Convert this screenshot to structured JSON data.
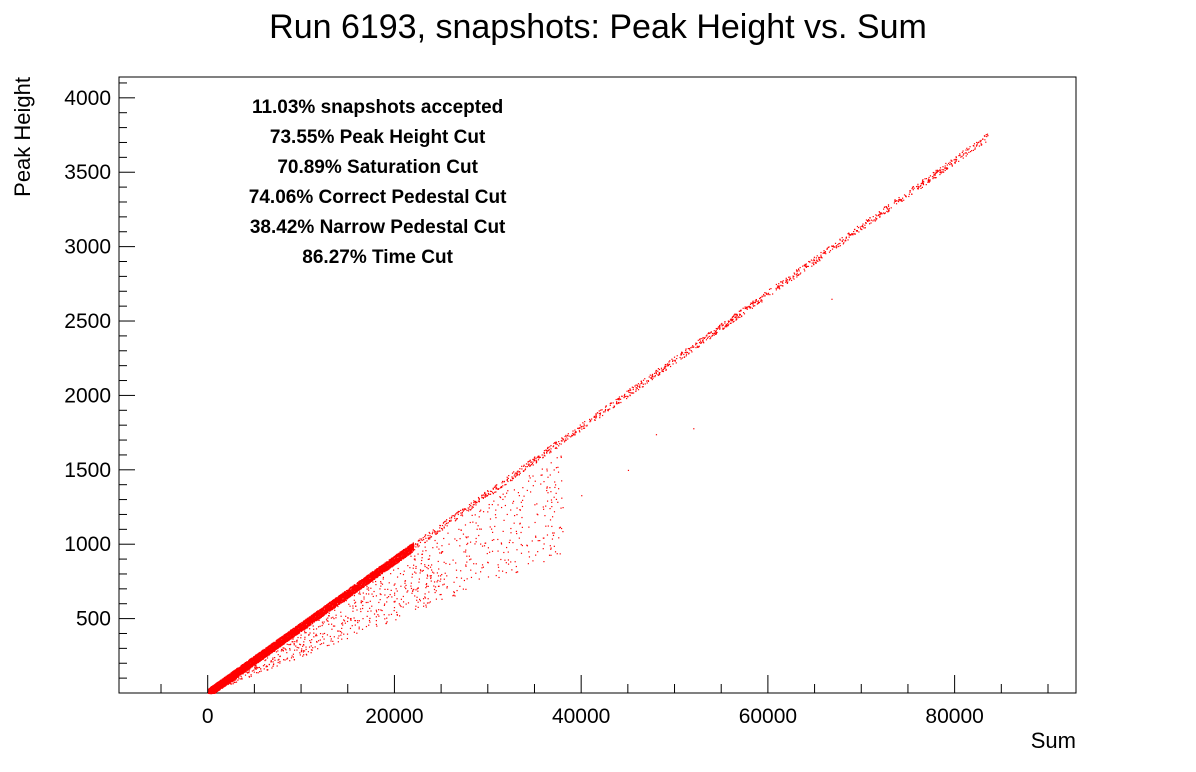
{
  "chart_data": {
    "type": "scatter",
    "title": "Run 6193, snapshots: Peak Height vs. Sum",
    "xlabel": "Sum",
    "ylabel": "Peak Height",
    "xlim": [
      -9500,
      93000
    ],
    "ylim": [
      0,
      4140
    ],
    "x_ticks": [
      0,
      20000,
      40000,
      60000,
      80000
    ],
    "y_ticks": [
      500,
      1000,
      1500,
      2000,
      2500,
      3000,
      3500,
      4000
    ],
    "x_tick_labels": [
      "0",
      "20000",
      "40000",
      "60000",
      "80000"
    ],
    "y_tick_labels": [
      "500",
      "1000",
      "1500",
      "2000",
      "2500",
      "3000",
      "3500",
      "4000"
    ],
    "grid": false,
    "marker_color": "#ff0000",
    "annotations": [
      "11.03% snapshots accepted",
      "73.55% Peak Height Cut",
      "70.89% Saturation Cut",
      "74.06% Correct Pedestal Cut",
      "38.42% Narrow Pedestal Cut",
      "86.27% Time Cut"
    ],
    "series": [
      {
        "trend": {
          "slope": 0.0448,
          "x_range": [
            0,
            83500
          ],
          "y_range": [
            0,
            3750
          ]
        },
        "dense_region": {
          "x_range": [
            0,
            22000
          ],
          "y_range": [
            0,
            1000
          ]
        },
        "points": [
          [
            500,
            22
          ],
          [
            1000,
            45
          ],
          [
            2000,
            90
          ],
          [
            3000,
            135
          ],
          [
            4000,
            180
          ],
          [
            5000,
            224
          ],
          [
            6000,
            270
          ],
          [
            7000,
            314
          ],
          [
            8000,
            360
          ],
          [
            9000,
            404
          ],
          [
            10000,
            450
          ],
          [
            11000,
            494
          ],
          [
            12000,
            540
          ],
          [
            13000,
            584
          ],
          [
            14000,
            628
          ],
          [
            15000,
            673
          ],
          [
            16000,
            718
          ],
          [
            17000,
            763
          ],
          [
            18000,
            808
          ],
          [
            19000,
            853
          ],
          [
            20000,
            898
          ],
          [
            21000,
            943
          ],
          [
            22000,
            988
          ],
          [
            24000,
            1075
          ],
          [
            26000,
            1165
          ],
          [
            28000,
            1255
          ],
          [
            30000,
            1345
          ],
          [
            32000,
            1435
          ],
          [
            34000,
            1525
          ],
          [
            36000,
            1615
          ],
          [
            38000,
            1705
          ],
          [
            40000,
            1795
          ],
          [
            42000,
            1885
          ],
          [
            44000,
            1975
          ],
          [
            46000,
            2065
          ],
          [
            48000,
            2150
          ],
          [
            50000,
            2240
          ],
          [
            52000,
            2330
          ],
          [
            54000,
            2420
          ],
          [
            56000,
            2510
          ],
          [
            58000,
            2600
          ],
          [
            60000,
            2690
          ],
          [
            62000,
            2780
          ],
          [
            64000,
            2870
          ],
          [
            66000,
            2960
          ],
          [
            68000,
            3050
          ],
          [
            70000,
            3140
          ],
          [
            72000,
            3230
          ],
          [
            74000,
            3320
          ],
          [
            76000,
            3410
          ],
          [
            78000,
            3500
          ],
          [
            80000,
            3590
          ],
          [
            82000,
            3680
          ],
          [
            83500,
            3750
          ],
          [
            48000,
            1740
          ],
          [
            52000,
            1780
          ],
          [
            45000,
            1500
          ],
          [
            40000,
            1330
          ],
          [
            38000,
            1250
          ],
          [
            35000,
            1150
          ],
          [
            33000,
            1090
          ],
          [
            30000,
            980
          ],
          [
            28000,
            900
          ],
          [
            25000,
            800
          ],
          [
            22000,
            700
          ],
          [
            20000,
            620
          ],
          [
            18000,
            560
          ],
          [
            16000,
            490
          ],
          [
            14000,
            420
          ],
          [
            12000,
            360
          ],
          [
            10000,
            300
          ],
          [
            66800,
            2650
          ]
        ]
      }
    ]
  }
}
